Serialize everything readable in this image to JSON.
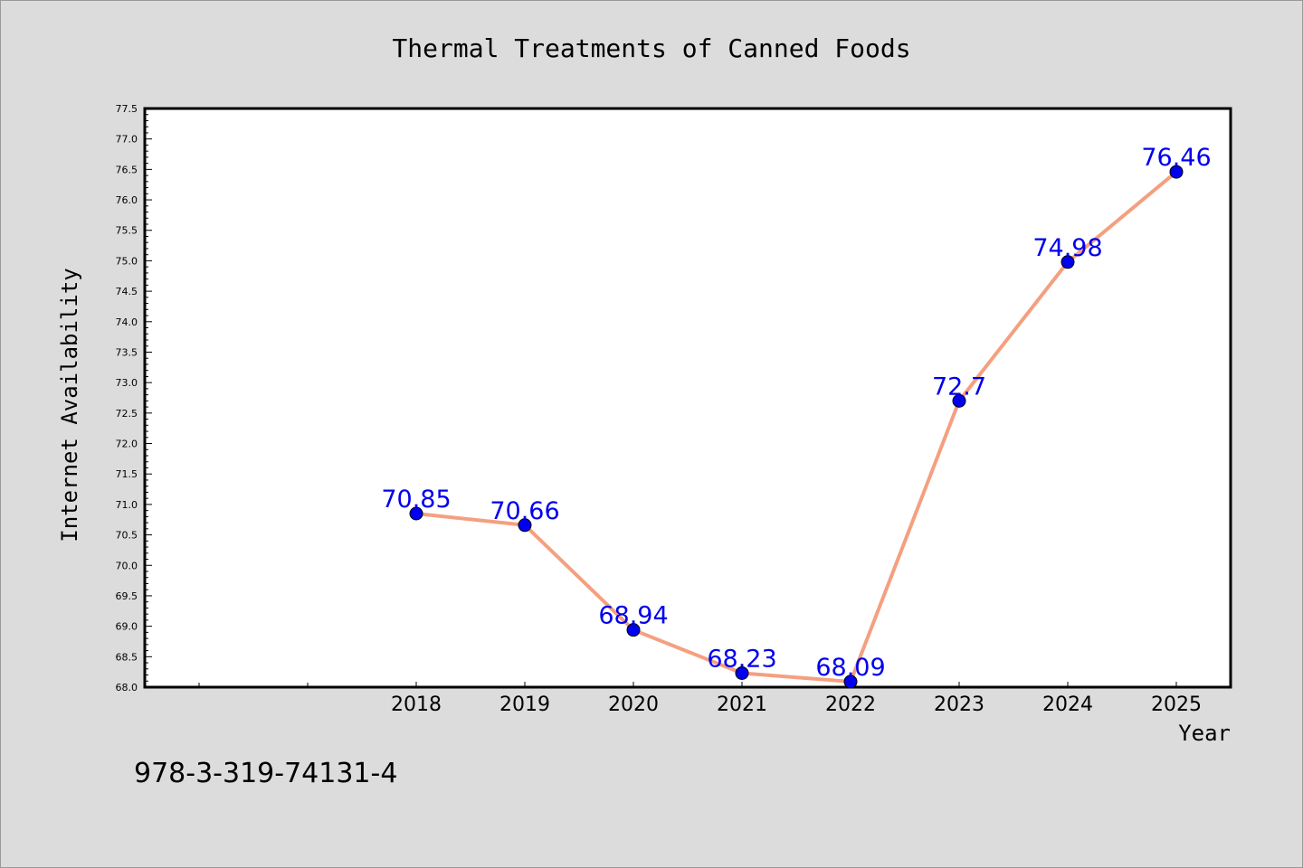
{
  "chart_data": {
    "type": "line",
    "title": "Thermal Treatments of Canned Foods",
    "xlabel": "Year",
    "ylabel": "Internet Availability",
    "categories": [
      "2018",
      "2019",
      "2020",
      "2021",
      "2022",
      "2023",
      "2024",
      "2025"
    ],
    "series": [
      {
        "values": [
          70.85,
          70.66,
          68.94,
          68.23,
          68.09,
          72.7,
          74.98,
          76.46
        ],
        "labels": [
          "70.85",
          "70.66",
          "68.94",
          "68.23",
          "68.09",
          "72.7",
          "74.98",
          "76.46"
        ],
        "line_color": "#f4a080",
        "marker_color": "#0000ee",
        "label_color": "#0000ee"
      }
    ],
    "ylim": [
      68.0,
      77.5
    ],
    "yticks": [
      "68.0",
      "68.5",
      "69.0",
      "69.5",
      "70.0",
      "70.5",
      "71.0",
      "71.5",
      "72.0",
      "72.5",
      "73.0",
      "73.5",
      "74.0",
      "74.5",
      "75.0",
      "75.5",
      "76.0",
      "76.5",
      "77.0",
      "77.5"
    ],
    "grid": false,
    "legend": false
  },
  "footer": {
    "isbn": "978-3-319-74131-4"
  }
}
